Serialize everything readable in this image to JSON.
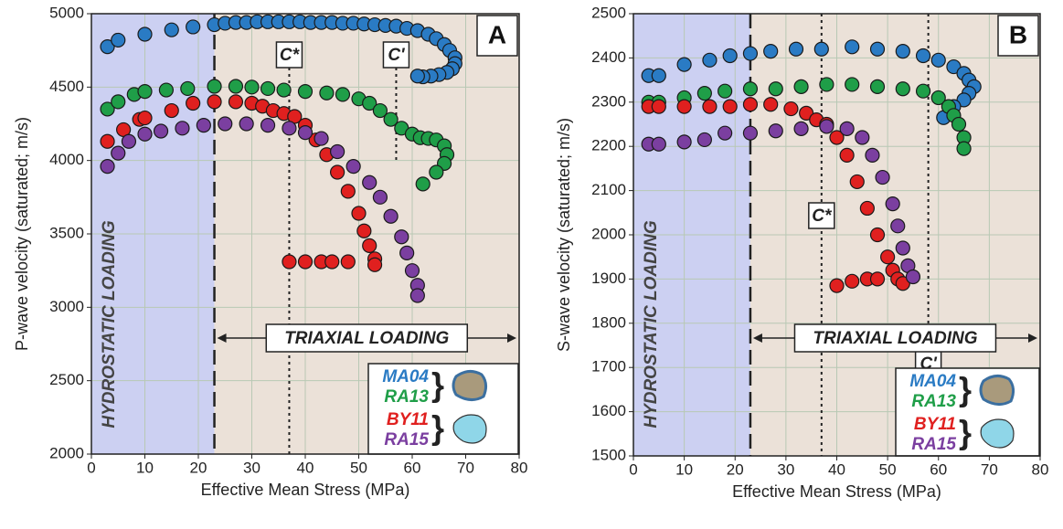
{
  "chart_data": [
    {
      "type": "scatter",
      "panel_label": "A",
      "xlabel": "Effective Mean Stress (MPa)",
      "ylabel": "P-wave velocity (saturated; m/s)",
      "xlim": [
        0,
        80
      ],
      "ylim": [
        2000,
        5000
      ],
      "xticks": [
        0,
        10,
        20,
        30,
        40,
        50,
        60,
        70,
        80
      ],
      "yticks": [
        2000,
        2500,
        3000,
        3500,
        4000,
        4500,
        5000
      ],
      "grid": true,
      "hydrostatic": {
        "label": "HYDROSTATIC LOADING",
        "xlim": [
          0,
          23
        ],
        "color": "#ccd0f2"
      },
      "triaxial": {
        "label": "TRIAXIAL LOADING",
        "xlim": [
          23,
          80
        ],
        "color": "#ebe1d8"
      },
      "markers": [
        {
          "label": "C*",
          "x": 37
        },
        {
          "label": "C'",
          "x": 57
        }
      ],
      "series": [
        {
          "name": "MA04",
          "color": "#2a7bc4",
          "x": [
            3,
            5,
            10,
            15,
            19,
            23,
            25,
            27,
            29,
            31,
            33,
            35,
            37,
            39,
            41,
            43,
            45,
            47,
            49,
            51,
            53,
            55,
            57,
            59,
            61,
            63,
            64.5,
            66,
            67,
            68,
            68,
            67.5,
            66.5,
            65,
            63.5,
            62,
            61
          ],
          "y": [
            4775,
            4820,
            4860,
            4890,
            4910,
            4925,
            4935,
            4940,
            4940,
            4945,
            4945,
            4945,
            4945,
            4945,
            4940,
            4940,
            4940,
            4935,
            4935,
            4930,
            4925,
            4920,
            4915,
            4900,
            4885,
            4860,
            4830,
            4790,
            4750,
            4700,
            4660,
            4625,
            4600,
            4585,
            4575,
            4570,
            4575
          ]
        },
        {
          "name": "RA13",
          "color": "#1f9e48",
          "x": [
            3,
            5,
            8,
            10,
            14,
            18,
            23,
            27,
            30,
            33,
            36,
            40,
            44,
            47,
            50,
            52,
            54,
            56,
            58,
            60,
            61.5,
            63,
            64.5,
            66,
            66.5,
            66,
            64.5,
            62
          ],
          "y": [
            4350,
            4400,
            4450,
            4470,
            4480,
            4490,
            4505,
            4505,
            4500,
            4490,
            4480,
            4470,
            4460,
            4450,
            4420,
            4390,
            4340,
            4280,
            4220,
            4180,
            4155,
            4150,
            4140,
            4100,
            4040,
            3980,
            3920,
            3840
          ]
        },
        {
          "name": "BY11",
          "color": "#e0201f",
          "x": [
            3,
            6,
            9,
            10,
            15,
            19,
            23,
            27,
            30,
            32,
            34,
            36,
            38,
            40,
            42,
            44,
            46,
            48,
            50,
            51,
            52,
            53,
            53,
            37,
            40,
            43,
            45,
            48
          ],
          "y": [
            4130,
            4210,
            4280,
            4290,
            4340,
            4390,
            4400,
            4400,
            4390,
            4370,
            4340,
            4320,
            4300,
            4240,
            4140,
            4040,
            3920,
            3790,
            3640,
            3520,
            3420,
            3330,
            3290,
            3310,
            3310,
            3310,
            3310,
            3310
          ]
        },
        {
          "name": "RA15",
          "color": "#7b3fa0",
          "x": [
            3,
            5,
            7,
            10,
            13,
            17,
            21,
            25,
            29,
            33,
            37,
            40,
            43,
            46,
            49,
            52,
            54,
            56,
            58,
            59,
            60,
            61,
            61
          ],
          "y": [
            3960,
            4050,
            4130,
            4180,
            4200,
            4220,
            4240,
            4250,
            4250,
            4240,
            4220,
            4190,
            4150,
            4060,
            3960,
            3850,
            3750,
            3620,
            3480,
            3370,
            3250,
            3150,
            3080
          ]
        }
      ]
    },
    {
      "type": "scatter",
      "panel_label": "B",
      "xlabel": "Effective Mean Stress (MPa)",
      "ylabel": "S-wave velocity (saturated; m/s)",
      "xlim": [
        0,
        80
      ],
      "ylim": [
        1500,
        2500
      ],
      "xticks": [
        0,
        10,
        20,
        30,
        40,
        50,
        60,
        70,
        80
      ],
      "yticks": [
        1500,
        1600,
        1700,
        1800,
        1900,
        2000,
        2100,
        2200,
        2300,
        2400,
        2500
      ],
      "grid": true,
      "hydrostatic": {
        "label": "HYDROSTATIC LOADING",
        "xlim": [
          0,
          23
        ],
        "color": "#ccd0f2"
      },
      "triaxial": {
        "label": "TRIAXIAL LOADING",
        "xlim": [
          23,
          80
        ],
        "color": "#ebe1d8"
      },
      "markers": [
        {
          "label": "C*",
          "x": 37
        },
        {
          "label": "C'",
          "x": 58
        }
      ],
      "series": [
        {
          "name": "MA04",
          "color": "#2a7bc4",
          "x": [
            3,
            5,
            10,
            15,
            19,
            23,
            27,
            32,
            37,
            43,
            48,
            53,
            57,
            60,
            63,
            65,
            66,
            67,
            66,
            65,
            63,
            61
          ],
          "y": [
            2360,
            2360,
            2385,
            2395,
            2405,
            2410,
            2415,
            2420,
            2420,
            2425,
            2420,
            2415,
            2405,
            2395,
            2380,
            2365,
            2350,
            2335,
            2320,
            2305,
            2290,
            2265
          ]
        },
        {
          "name": "RA13",
          "color": "#1f9e48",
          "x": [
            3,
            5,
            10,
            14,
            18,
            23,
            28,
            33,
            38,
            43,
            48,
            53,
            57,
            60,
            62,
            63,
            64,
            65,
            65
          ],
          "y": [
            2300,
            2300,
            2310,
            2320,
            2325,
            2330,
            2330,
            2335,
            2340,
            2340,
            2335,
            2330,
            2325,
            2310,
            2290,
            2270,
            2250,
            2220,
            2195
          ]
        },
        {
          "name": "BY11",
          "color": "#e0201f",
          "x": [
            3,
            5,
            10,
            15,
            19,
            23,
            27,
            31,
            34,
            36,
            38,
            40,
            42,
            44,
            46,
            48,
            50,
            51,
            52,
            53,
            40,
            43,
            46,
            48
          ],
          "y": [
            2290,
            2290,
            2290,
            2290,
            2290,
            2295,
            2295,
            2285,
            2275,
            2260,
            2250,
            2220,
            2180,
            2120,
            2060,
            2000,
            1950,
            1920,
            1900,
            1890,
            1885,
            1895,
            1900,
            1900
          ]
        },
        {
          "name": "RA15",
          "color": "#7b3fa0",
          "x": [
            3,
            5,
            10,
            14,
            18,
            23,
            28,
            33,
            38,
            42,
            45,
            47,
            49,
            51,
            52,
            53,
            54,
            55
          ],
          "y": [
            2205,
            2205,
            2210,
            2215,
            2230,
            2230,
            2235,
            2240,
            2245,
            2240,
            2220,
            2180,
            2130,
            2070,
            2020,
            1970,
            1930,
            1905
          ]
        }
      ]
    }
  ]
}
